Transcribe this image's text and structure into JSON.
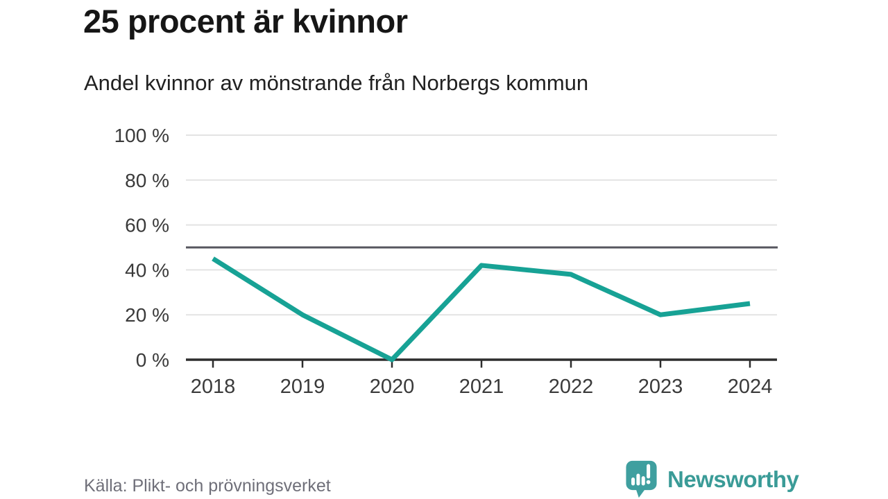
{
  "header": {
    "title": "25 procent är kvinnor",
    "subtitle": "Andel kvinnor av mönstrande från Norbergs kommun"
  },
  "chart_data": {
    "type": "line",
    "title": "25 procent är kvinnor",
    "subtitle": "Andel kvinnor av mönstrande från Norbergs kommun",
    "x": [
      2018,
      2019,
      2020,
      2021,
      2022,
      2023,
      2024
    ],
    "series": [
      {
        "name": "Andel kvinnor av mönstrande",
        "values": [
          45,
          20,
          0,
          42,
          38,
          20,
          25
        ]
      }
    ],
    "ylim": [
      0,
      100
    ],
    "yticks": [
      0,
      20,
      40,
      60,
      80,
      100
    ],
    "ytick_labels": [
      "0 %",
      "20 %",
      "40 %",
      "60 %",
      "80 %",
      "100 %"
    ],
    "reference_line": 50,
    "grid": true,
    "legend": false,
    "colors": {
      "line": "#17a295",
      "grid": "#e3e3e3",
      "reference": "#56565e",
      "axis": "#2d2d2d",
      "tick_label": "#3a3a3a",
      "brand": "#3a9b97",
      "logo_bubble": "#3f9f9f"
    }
  },
  "footer": {
    "source": "Källa: Plikt- och prövningsverket",
    "brand": "Newsworthy"
  }
}
